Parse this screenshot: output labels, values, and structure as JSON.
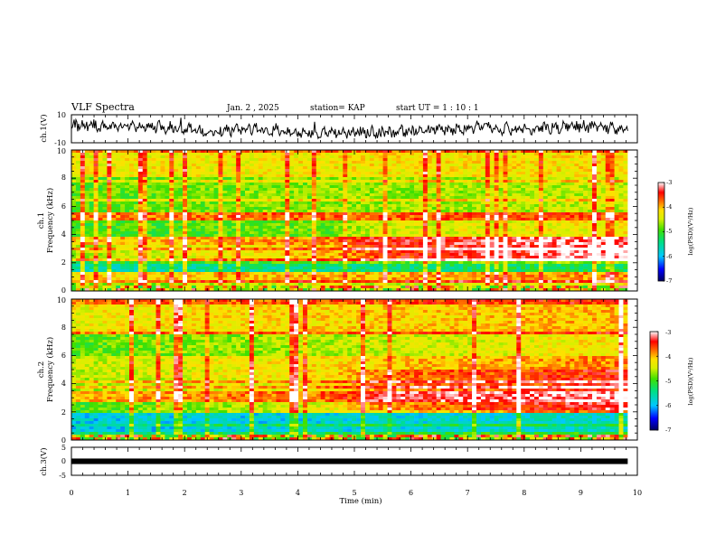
{
  "header": {
    "title": "VLF Spectra",
    "date": "Jan. 2 , 2025",
    "station": "station= KAP",
    "start": "start UT =  1 : 10 : 1"
  },
  "chart_data": [
    {
      "type": "line",
      "id": "ch1-waveform",
      "ylabel": "ch.1(V)",
      "ylim": [
        -10,
        10
      ],
      "yticks": [
        "10",
        "-10"
      ],
      "xlim": [
        0,
        10
      ],
      "x_end": 9.83,
      "baseline_trend": [
        {
          "x": 0,
          "y": 3
        },
        {
          "x": 1,
          "y": 2
        },
        {
          "x": 1.8,
          "y": 1
        },
        {
          "x": 2.5,
          "y": -2
        },
        {
          "x": 3,
          "y": 0
        },
        {
          "x": 3.6,
          "y": -1
        },
        {
          "x": 4,
          "y": -3
        },
        {
          "x": 4.8,
          "y": -3
        },
        {
          "x": 5.5,
          "y": -2
        },
        {
          "x": 6.3,
          "y": -1
        },
        {
          "x": 7.2,
          "y": 1
        },
        {
          "x": 8,
          "y": -1
        },
        {
          "x": 8.3,
          "y": 0
        },
        {
          "x": 9,
          "y": 2
        },
        {
          "x": 9.83,
          "y": 0
        }
      ],
      "color": "#000000"
    },
    {
      "type": "heatmap",
      "id": "ch1-spectrogram",
      "ylabel_line1": "ch.1",
      "ylabel_line2": "Frequency (kHz)",
      "ylim": [
        0,
        10
      ],
      "yticks": [
        "0",
        "2",
        "4",
        "6",
        "8",
        "10"
      ],
      "xlim": [
        0,
        10
      ],
      "x_end": 9.83,
      "colorbar": {
        "label": "log(PSD)(V²/Hz)",
        "range": [
          -7,
          -3
        ],
        "ticks": [
          "-3",
          "-4",
          "-5",
          "-6",
          "-7"
        ]
      },
      "bands_log_psd": [
        {
          "from": 0,
          "to": 0.5,
          "start": -5.2,
          "end": -4.8
        },
        {
          "from": 0.5,
          "to": 1.3,
          "start": -4.2,
          "end": -3.8
        },
        {
          "from": 1.3,
          "to": 2.2,
          "start": -5.6,
          "end": -5.2
        },
        {
          "from": 2.2,
          "to": 3.2,
          "start": -4.6,
          "end": -3.4
        },
        {
          "from": 3.2,
          "to": 3.8,
          "start": -4.1,
          "end": -3.5
        },
        {
          "from": 3.8,
          "to": 5.0,
          "start": -5.0,
          "end": -4.6
        },
        {
          "from": 5.0,
          "to": 5.5,
          "start": -3.8,
          "end": -3.6
        },
        {
          "from": 5.5,
          "to": 8.0,
          "start": -4.9,
          "end": -4.5
        },
        {
          "from": 8.0,
          "to": 10.0,
          "start": -4.3,
          "end": -4.2
        }
      ],
      "transition_time_min": 4.6
    },
    {
      "type": "heatmap",
      "id": "ch2-spectrogram",
      "ylabel_line1": "ch.2",
      "ylabel_line2": "Frequency (kHz)",
      "ylim": [
        0,
        10
      ],
      "yticks": [
        "0",
        "2",
        "4",
        "6",
        "8",
        "10"
      ],
      "xlim": [
        0,
        10
      ],
      "x_end": 9.83,
      "colorbar": {
        "label": "log(PSD)(V²/Hz)",
        "range": [
          -7,
          -3
        ],
        "ticks": [
          "-3",
          "-4",
          "-5",
          "-6",
          "-7"
        ]
      },
      "bands_log_psd": [
        {
          "from": 0,
          "to": 0.5,
          "start": -5.4,
          "end": -5.0
        },
        {
          "from": 0.5,
          "to": 1.9,
          "start": -5.9,
          "end": -5.7
        },
        {
          "from": 1.9,
          "to": 2.6,
          "start": -5.0,
          "end": -3.6
        },
        {
          "from": 2.6,
          "to": 3.4,
          "start": -4.0,
          "end": -3.4
        },
        {
          "from": 3.4,
          "to": 4.4,
          "start": -4.6,
          "end": -3.8
        },
        {
          "from": 4.4,
          "to": 6.0,
          "start": -4.5,
          "end": -3.8
        },
        {
          "from": 6.0,
          "to": 7.5,
          "start": -4.9,
          "end": -4.2
        },
        {
          "from": 7.5,
          "to": 10.0,
          "start": -4.3,
          "end": -4.0
        }
      ],
      "transition_time_min": 4.6
    },
    {
      "type": "line",
      "id": "ch3-trace",
      "ylabel": "ch.3(V)",
      "ylim": [
        -5,
        5
      ],
      "yticks": [
        "5",
        "0",
        "-5"
      ],
      "xlim": [
        0,
        10
      ],
      "x_end": 9.83,
      "y_band": [
        -0.5,
        0.5
      ],
      "color": "#000000"
    }
  ],
  "xaxis": {
    "label": "Time (min)",
    "ticks": [
      "0",
      "1",
      "2",
      "3",
      "4",
      "5",
      "6",
      "7",
      "8",
      "9",
      "10"
    ]
  }
}
